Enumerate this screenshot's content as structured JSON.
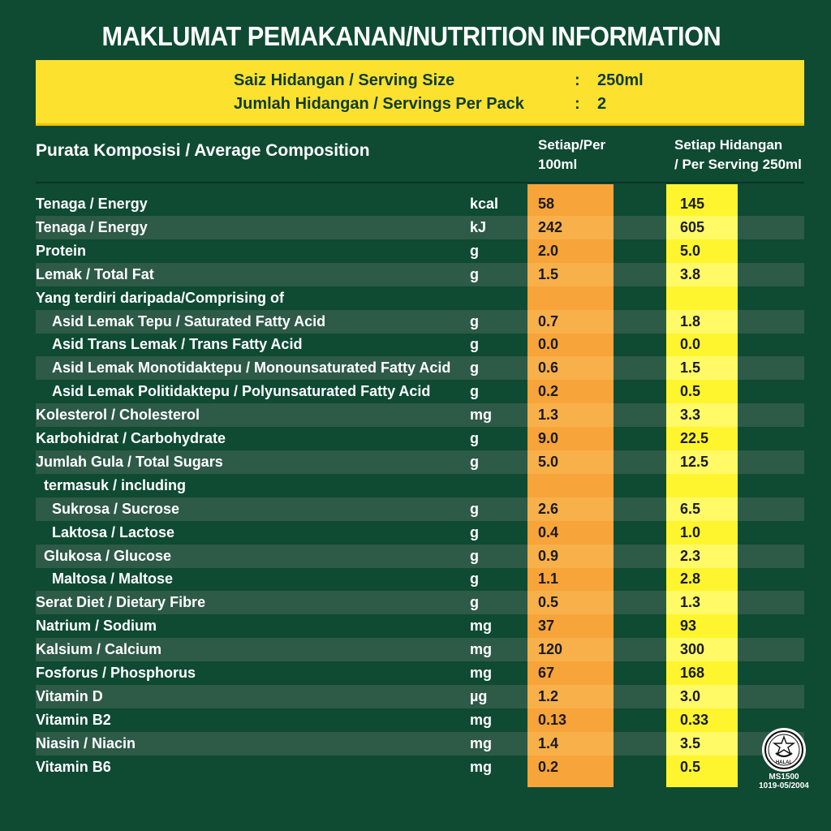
{
  "title": "MAKLUMAT PEMAKANAN/NUTRITION INFORMATION",
  "serving": [
    {
      "label": "Saiz Hidangan / Serving Size",
      "colon": ":",
      "value": "250ml"
    },
    {
      "label": "Jumlah Hidangan / Servings Per Pack",
      "colon": ":",
      "value": "2"
    }
  ],
  "header": {
    "composition": "Purata Komposisi / Average Composition",
    "per100_line1": "Setiap/Per",
    "per100_line2": "100ml",
    "perserving_line1": "Setiap Hidangan",
    "perserving_line2": "/ Per Serving 250ml"
  },
  "rows": [
    {
      "name": "Tenaga / Energy",
      "indent": 0,
      "unit": "kcal",
      "per100": "58",
      "perServing": "145"
    },
    {
      "name": "Tenaga / Energy",
      "indent": 0,
      "unit": "kJ",
      "per100": "242",
      "perServing": "605"
    },
    {
      "name": "Protein",
      "indent": 0,
      "unit": "g",
      "per100": "2.0",
      "perServing": "5.0"
    },
    {
      "name": "Lemak / Total Fat",
      "indent": 0,
      "unit": "g",
      "per100": "1.5",
      "perServing": "3.8"
    },
    {
      "name": "Yang terdiri daripada/Comprising of",
      "indent": 0,
      "unit": "",
      "per100": "",
      "perServing": ""
    },
    {
      "name": "Asid Lemak Tepu / Saturated Fatty Acid",
      "indent": 2,
      "unit": "g",
      "per100": "0.7",
      "perServing": "1.8"
    },
    {
      "name": "Asid Trans Lemak / Trans Fatty Acid",
      "indent": 2,
      "unit": "g",
      "per100": "0.0",
      "perServing": "0.0"
    },
    {
      "name": "Asid Lemak Monotidaktepu / Monounsaturated Fatty Acid",
      "indent": 2,
      "unit": "g",
      "per100": "0.6",
      "perServing": "1.5"
    },
    {
      "name": "Asid Lemak Politidaktepu / Polyunsaturated Fatty Acid",
      "indent": 2,
      "unit": "g",
      "per100": "0.2",
      "perServing": "0.5"
    },
    {
      "name": "Kolesterol / Cholesterol",
      "indent": 0,
      "unit": "mg",
      "per100": "1.3",
      "perServing": "3.3"
    },
    {
      "name": "Karbohidrat / Carbohydrate",
      "indent": 0,
      "unit": "g",
      "per100": "9.0",
      "perServing": "22.5"
    },
    {
      "name": "Jumlah Gula / Total Sugars",
      "indent": 0,
      "unit": "g",
      "per100": "5.0",
      "perServing": "12.5"
    },
    {
      "name": "termasuk / including",
      "indent": 1,
      "unit": "",
      "per100": "",
      "perServing": ""
    },
    {
      "name": "Sukrosa / Sucrose",
      "indent": 2,
      "unit": "g",
      "per100": "2.6",
      "perServing": "6.5"
    },
    {
      "name": "Laktosa / Lactose",
      "indent": 2,
      "unit": "g",
      "per100": "0.4",
      "perServing": "1.0"
    },
    {
      "name": "Glukosa / Glucose",
      "indent": 1,
      "unit": "g",
      "per100": "0.9",
      "perServing": "2.3"
    },
    {
      "name": "Maltosa / Maltose",
      "indent": 2,
      "unit": "g",
      "per100": "1.1",
      "perServing": "2.8"
    },
    {
      "name": "Serat Diet / Dietary Fibre",
      "indent": 0,
      "unit": "g",
      "per100": "0.5",
      "perServing": "1.3"
    },
    {
      "name": "Natrium / Sodium",
      "indent": 0,
      "unit": "mg",
      "per100": "37",
      "perServing": "93"
    },
    {
      "name": "Kalsium / Calcium",
      "indent": 0,
      "unit": "mg",
      "per100": "120",
      "perServing": "300"
    },
    {
      "name": "Fosforus / Phosphorus",
      "indent": 0,
      "unit": "mg",
      "per100": "67",
      "perServing": "168"
    },
    {
      "name": "Vitamin D",
      "indent": 0,
      "unit": "µg",
      "per100": "1.2",
      "perServing": "3.0"
    },
    {
      "name": "Vitamin B2",
      "indent": 0,
      "unit": "mg",
      "per100": "0.13",
      "perServing": "0.33"
    },
    {
      "name": "Niasin / Niacin",
      "indent": 0,
      "unit": "mg",
      "per100": "1.4",
      "perServing": "3.5"
    },
    {
      "name": "Vitamin B6",
      "indent": 0,
      "unit": "mg",
      "per100": "0.2",
      "perServing": "0.5"
    }
  ],
  "halal": {
    "icon": "halal-logo-icon",
    "logo_text": "HALAL",
    "code_line1": "MS1500",
    "code_line2": "1019-05/2004"
  },
  "colors": {
    "background": "#0f4a33",
    "row_alt": "#2e5a48",
    "serving_box": "#fde12f",
    "per100_column": "#f7a43a",
    "perserving_column": "#fff52e"
  }
}
